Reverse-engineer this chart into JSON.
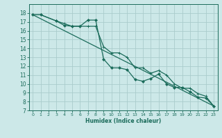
{
  "xlabel": "Humidex (Indice chaleur)",
  "bg_color": "#cce8e8",
  "grid_color": "#aacccc",
  "line_color": "#1a6b5a",
  "xlim": [
    -0.5,
    23.5
  ],
  "ylim": [
    7,
    19
  ],
  "xticks": [
    0,
    1,
    2,
    3,
    4,
    5,
    6,
    7,
    8,
    9,
    10,
    11,
    12,
    13,
    14,
    15,
    16,
    17,
    18,
    19,
    20,
    21,
    22,
    23
  ],
  "yticks": [
    7,
    8,
    9,
    10,
    11,
    12,
    13,
    14,
    15,
    16,
    17,
    18
  ],
  "line1_x": [
    0,
    1,
    3,
    4,
    5,
    6,
    7,
    8,
    9,
    10,
    11,
    12,
    13,
    14,
    15,
    16,
    17,
    18,
    19,
    20,
    21,
    22,
    23
  ],
  "line1_y": [
    17.8,
    17.8,
    17.1,
    16.6,
    16.5,
    16.5,
    17.2,
    17.2,
    12.8,
    11.8,
    11.8,
    11.6,
    10.5,
    10.3,
    10.6,
    11.1,
    10.0,
    9.6,
    9.6,
    9.1,
    8.5,
    8.4,
    7.5
  ],
  "line2_x": [
    0,
    1,
    3,
    4,
    5,
    6,
    7,
    8,
    9,
    10,
    11,
    12,
    13,
    14,
    15,
    16,
    17,
    18,
    19,
    20,
    21,
    22,
    23
  ],
  "line2_y": [
    17.8,
    17.8,
    17.1,
    16.8,
    16.5,
    16.5,
    16.5,
    16.5,
    14.2,
    13.5,
    13.5,
    13.0,
    11.8,
    11.8,
    11.2,
    11.5,
    11.0,
    10.0,
    9.5,
    9.5,
    8.9,
    8.6,
    7.5
  ],
  "line3_x": [
    0,
    23
  ],
  "line3_y": [
    17.8,
    7.5
  ]
}
